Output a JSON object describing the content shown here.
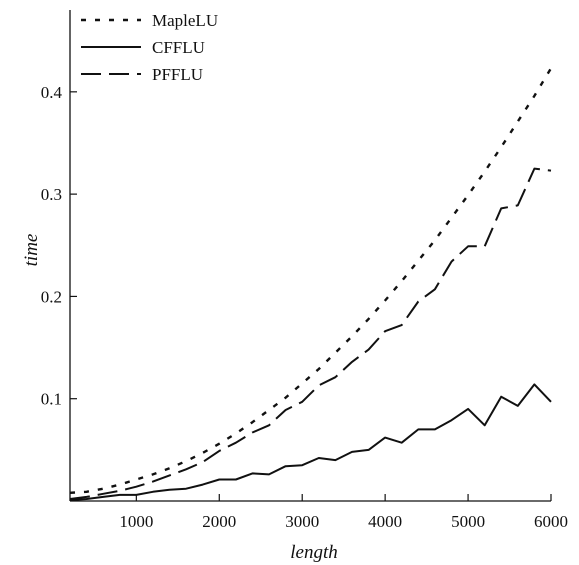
{
  "chart_data": {
    "type": "line",
    "title": "",
    "xlabel": "length",
    "ylabel": "time",
    "xlim": [
      200,
      6000
    ],
    "ylim": [
      0,
      0.48
    ],
    "x_ticks": [
      1000,
      2000,
      3000,
      4000,
      5000,
      6000
    ],
    "y_ticks": [
      0.1,
      0.2,
      0.3,
      0.4
    ],
    "x_tick_labels": [
      "1000",
      "2000",
      "3000",
      "4000",
      "5000",
      "6000"
    ],
    "y_tick_labels": [
      "0.1",
      "0.2",
      "0.3",
      "0.4"
    ],
    "grid": false,
    "legend": "top-left",
    "x": [
      200,
      400,
      600,
      800,
      1000,
      1200,
      1400,
      1600,
      1800,
      2000,
      2200,
      2400,
      2600,
      2800,
      3000,
      3200,
      3400,
      3600,
      3800,
      4000,
      4200,
      4400,
      4600,
      4800,
      5000,
      5200,
      5400,
      5600,
      5800,
      6000
    ],
    "series": [
      {
        "name": "MapleLU",
        "style": "dotted",
        "values": [
          0.008,
          0.009,
          0.012,
          0.016,
          0.021,
          0.026,
          0.032,
          0.039,
          0.047,
          0.056,
          0.066,
          0.077,
          0.089,
          0.101,
          0.115,
          0.129,
          0.145,
          0.161,
          0.178,
          0.196,
          0.215,
          0.235,
          0.255,
          0.277,
          0.299,
          0.322,
          0.346,
          0.371,
          0.396,
          0.423
        ]
      },
      {
        "name": "CFFLU",
        "style": "solid",
        "values": [
          0.001,
          0.002,
          0.004,
          0.006,
          0.006,
          0.009,
          0.011,
          0.012,
          0.016,
          0.021,
          0.021,
          0.027,
          0.026,
          0.034,
          0.035,
          0.042,
          0.04,
          0.048,
          0.05,
          0.062,
          0.057,
          0.07,
          0.07,
          0.079,
          0.09,
          0.074,
          0.102,
          0.093,
          0.114,
          0.097
        ]
      },
      {
        "name": "PFFLU",
        "style": "dashed",
        "values": [
          0.002,
          0.004,
          0.007,
          0.01,
          0.014,
          0.019,
          0.025,
          0.031,
          0.038,
          0.049,
          0.057,
          0.067,
          0.074,
          0.089,
          0.097,
          0.113,
          0.121,
          0.136,
          0.148,
          0.166,
          0.172,
          0.195,
          0.207,
          0.234,
          0.249,
          0.249,
          0.286,
          0.289,
          0.325,
          0.323
        ]
      }
    ]
  }
}
